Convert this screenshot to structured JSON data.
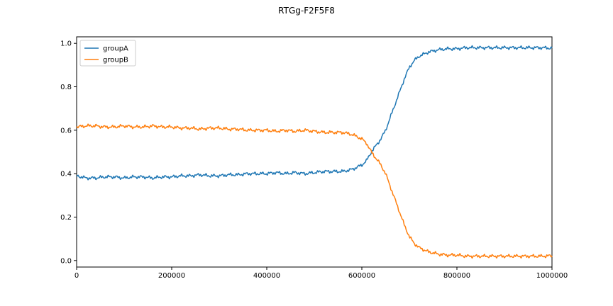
{
  "chart_data": {
    "type": "line",
    "title": "RTGg-F2F5F8",
    "xlabel": "",
    "ylabel": "",
    "xlim": [
      0,
      1000000
    ],
    "ylim": [
      -0.03,
      1.03
    ],
    "xticks": [
      0,
      200000,
      400000,
      600000,
      800000,
      1000000
    ],
    "xtick_labels": [
      "0",
      "200000",
      "400000",
      "600000",
      "800000",
      "1000000"
    ],
    "yticks": [
      0.0,
      0.2,
      0.4,
      0.6,
      0.8,
      1.0
    ],
    "ytick_labels": [
      "0.0",
      "0.2",
      "0.4",
      "0.6",
      "0.8",
      "1.0"
    ],
    "grid": false,
    "legend_position": "top-left",
    "x": [
      0,
      20000,
      40000,
      60000,
      80000,
      100000,
      120000,
      140000,
      160000,
      180000,
      200000,
      220000,
      240000,
      260000,
      280000,
      300000,
      320000,
      340000,
      360000,
      380000,
      400000,
      420000,
      440000,
      460000,
      480000,
      500000,
      520000,
      540000,
      560000,
      580000,
      600000,
      610000,
      620000,
      630000,
      640000,
      650000,
      660000,
      670000,
      680000,
      690000,
      700000,
      710000,
      720000,
      740000,
      760000,
      780000,
      800000,
      820000,
      840000,
      860000,
      880000,
      900000,
      920000,
      940000,
      960000,
      980000,
      1000000
    ],
    "series": [
      {
        "name": "groupA",
        "color": "#1f77b4",
        "values": [
          0.39,
          0.38,
          0.38,
          0.385,
          0.385,
          0.38,
          0.385,
          0.385,
          0.38,
          0.385,
          0.385,
          0.39,
          0.39,
          0.395,
          0.39,
          0.39,
          0.395,
          0.395,
          0.4,
          0.4,
          0.4,
          0.405,
          0.4,
          0.405,
          0.4,
          0.405,
          0.41,
          0.41,
          0.41,
          0.42,
          0.44,
          0.46,
          0.5,
          0.53,
          0.56,
          0.6,
          0.66,
          0.72,
          0.78,
          0.84,
          0.89,
          0.92,
          0.94,
          0.96,
          0.97,
          0.975,
          0.975,
          0.98,
          0.98,
          0.98,
          0.98,
          0.98,
          0.98,
          0.98,
          0.98,
          0.98,
          0.978
        ]
      },
      {
        "name": "groupB",
        "color": "#ff7f0e",
        "values": [
          0.615,
          0.62,
          0.62,
          0.615,
          0.615,
          0.62,
          0.615,
          0.615,
          0.62,
          0.615,
          0.615,
          0.61,
          0.61,
          0.605,
          0.61,
          0.61,
          0.605,
          0.605,
          0.6,
          0.6,
          0.6,
          0.595,
          0.6,
          0.595,
          0.6,
          0.595,
          0.59,
          0.59,
          0.59,
          0.58,
          0.56,
          0.54,
          0.5,
          0.47,
          0.44,
          0.4,
          0.34,
          0.28,
          0.22,
          0.16,
          0.11,
          0.08,
          0.06,
          0.04,
          0.03,
          0.025,
          0.025,
          0.02,
          0.02,
          0.02,
          0.02,
          0.02,
          0.02,
          0.02,
          0.02,
          0.02,
          0.022
        ]
      }
    ]
  }
}
